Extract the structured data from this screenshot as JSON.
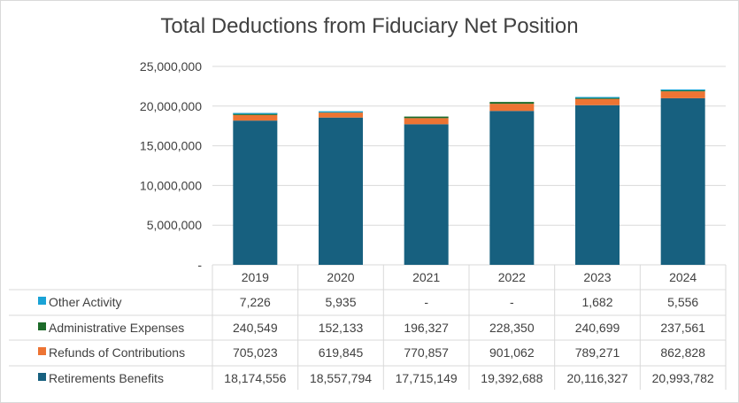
{
  "chart_data": {
    "type": "bar",
    "stacked": true,
    "title": "Total Deductions from Fiduciary Net Position",
    "categories": [
      "2019",
      "2020",
      "2021",
      "2022",
      "2023",
      "2024"
    ],
    "ylim": [
      0,
      25000000
    ],
    "yticks": [
      0,
      5000000,
      10000000,
      15000000,
      20000000,
      25000000
    ],
    "ytick_labels": [
      "-",
      "5,000,000",
      "10,000,000",
      "15,000,000",
      "20,000,000",
      "25,000,000"
    ],
    "grid": true,
    "legend": "data-table",
    "series": [
      {
        "name": "Retirements Benefits",
        "color": "#17607f",
        "values": [
          18174556,
          18557794,
          17715149,
          19392688,
          20116327,
          20993782
        ],
        "labels": [
          "18,174,556",
          "18,557,794",
          "17,715,149",
          "19,392,688",
          "20,116,327",
          "20,993,782"
        ]
      },
      {
        "name": "Refunds of Contributions",
        "color": "#ed7433",
        "values": [
          705023,
          619845,
          770857,
          901062,
          789271,
          862828
        ],
        "labels": [
          "705,023",
          "619,845",
          "770,857",
          "901,062",
          "789,271",
          "862,828"
        ]
      },
      {
        "name": "Administrative Expenses",
        "color": "#1d6b2a",
        "values": [
          240549,
          152133,
          196327,
          228350,
          240699,
          237561
        ],
        "labels": [
          "240,549",
          "152,133",
          "196,327",
          "228,350",
          "240,699",
          "237,561"
        ]
      },
      {
        "name": "Other Activity",
        "color": "#1aa3d6",
        "values": [
          7226,
          5935,
          0,
          0,
          1682,
          5556
        ],
        "labels": [
          "7,226",
          "5,935",
          "-",
          "-",
          "1,682",
          "5,556"
        ]
      }
    ]
  }
}
